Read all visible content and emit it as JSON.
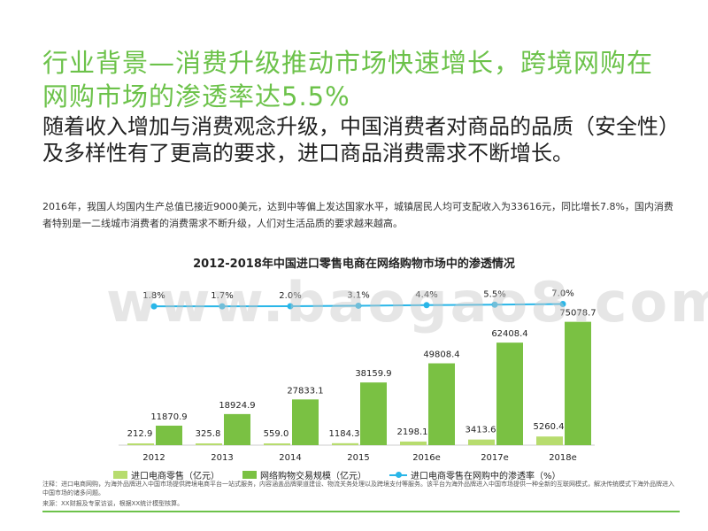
{
  "header": {
    "title": "行业背景—消费升级推动市场快速增长，跨境网购在网购市场的渗透率达5.5%",
    "subtitle": "随着收入增加与消费观念升级，中国消费者对商品的品质（安全性）及多样性有了更高的要求，进口商品消费需求不断增长。",
    "description": "2016年，我国人均国内生产总值已接近9000美元，达到中等偏上发达国家水平，城镇居民人均可支配收入为33616元，同比增长7.8%，国内消费者特别是一二线城市消费者的消费需求不断升级，人们对生活品质的要求越来越高。"
  },
  "watermark": "www.baogao8.com",
  "chart_data": {
    "type": "bar",
    "title": "2012-2018年中国进口零售电商在网络购物市场中的渗透情况",
    "categories": [
      "2012",
      "2013",
      "2014",
      "2015",
      "2016e",
      "2017e",
      "2018e"
    ],
    "series": [
      {
        "name": "进口电商零售（亿元）",
        "values": [
          212.9,
          325.8,
          559.0,
          1184.3,
          2198.1,
          3413.6,
          5260.4
        ],
        "labels": [
          "212.9",
          "325.8",
          "559.0",
          "1184.3",
          "2198.1",
          "3413.6",
          "5260.4"
        ],
        "color": "#b7dc6e"
      },
      {
        "name": "网络购物交易规模（亿元）",
        "values": [
          11870.9,
          18924.9,
          27833.1,
          38159.9,
          49808.4,
          62408.4,
          75078.7
        ],
        "labels": [
          "11870.9",
          "18924.9",
          "27833.1",
          "38159.9",
          "49808.4",
          "62408.4",
          "75078.7"
        ],
        "color": "#7ac143"
      },
      {
        "name": "进口电商零售在网购中的渗透率（%）",
        "values": [
          1.8,
          1.7,
          2.0,
          3.1,
          4.4,
          5.5,
          7.0
        ],
        "labels": [
          "1.8%",
          "1.7%",
          "2.0%",
          "3.1%",
          "4.4%",
          "5.5%",
          "7.0%"
        ],
        "color": "#29b6e8",
        "axis": "secondary"
      }
    ],
    "ylim": [
      0,
      80000
    ],
    "y2lim": [
      0,
      8
    ],
    "grid": false,
    "legend_position": "bottom"
  },
  "footer": {
    "note": "注释：进口电商网购，为海外品牌进入中国市场提供跨境电商平台一站式服务，内容涵盖品牌渠道建设、物流关务处理以及跨境支付等服务。该平台为海外品牌进入中国市场提供一种全新的互联网模式，解决传统模式下海外品牌进入中国市场的诸多问题。",
    "source": "来源：XX财报及专家访谈，根据XX统计模型核算。"
  }
}
